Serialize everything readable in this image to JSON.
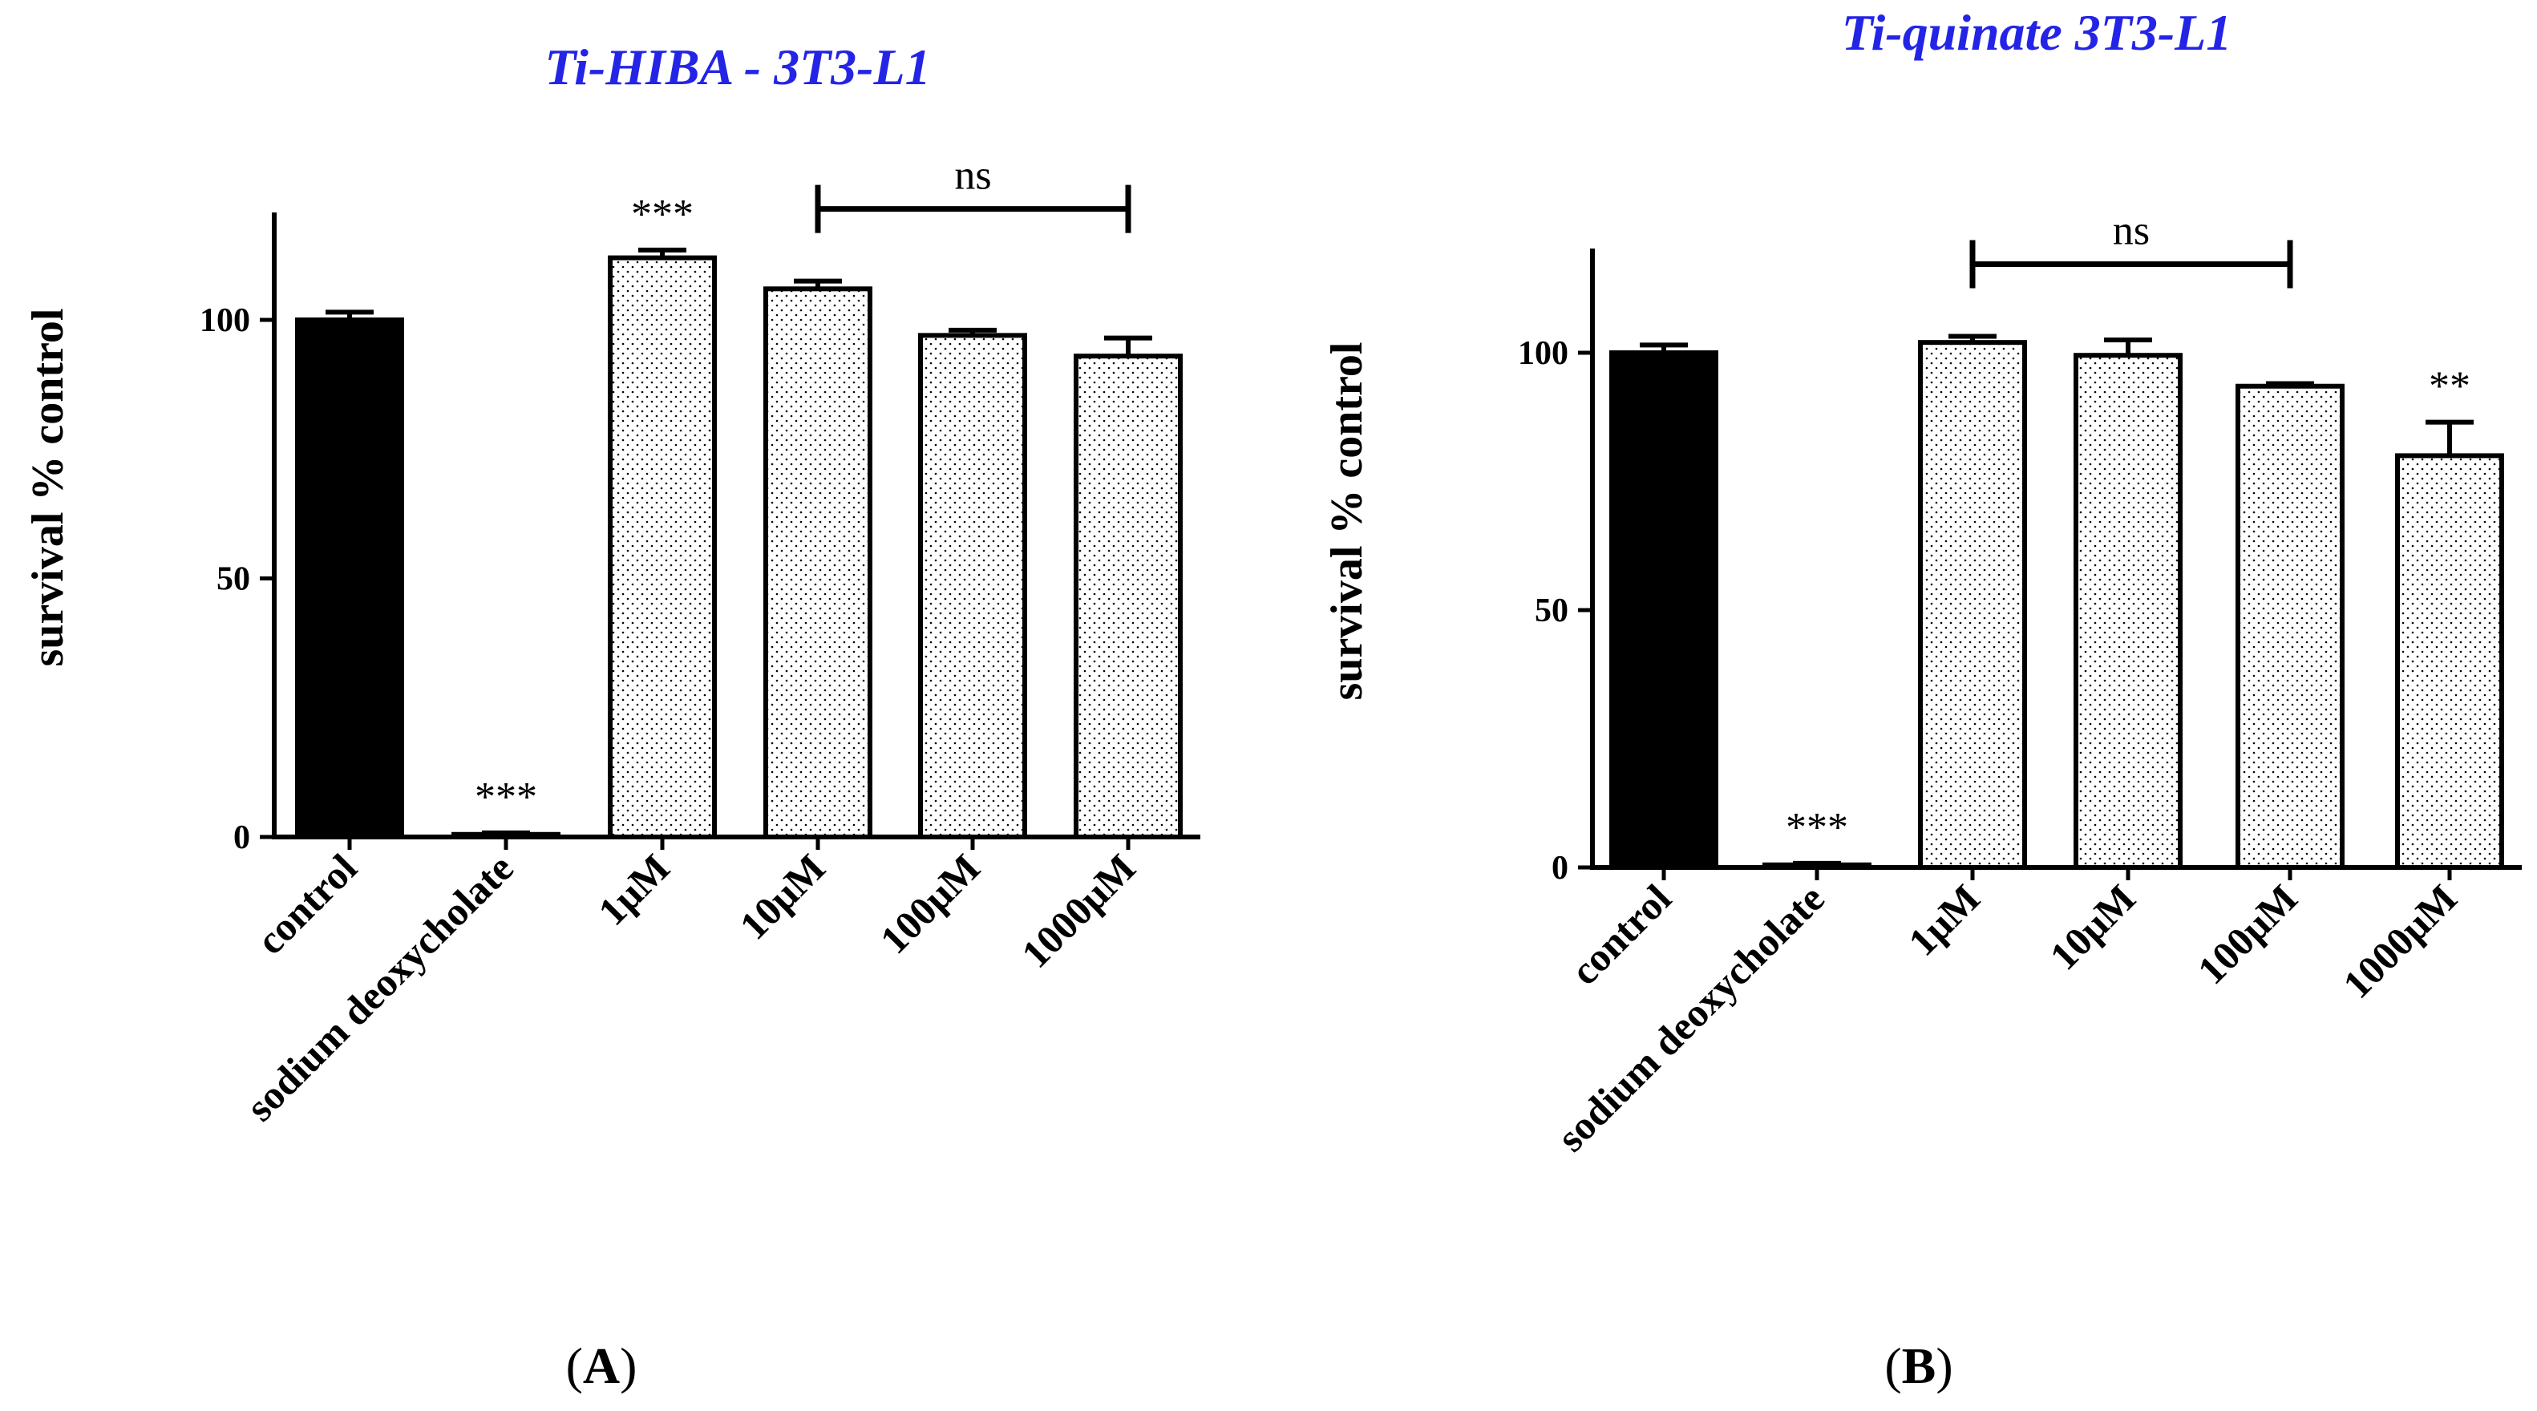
{
  "figure": {
    "panel_a_label": "(A)",
    "panel_a_letter": "A",
    "panel_b_label": "(B)",
    "panel_b_letter": "B"
  },
  "colors": {
    "title": "#2424e6",
    "control_fill": "#000000",
    "bar_stroke": "#000000",
    "dot_pattern": "#000000"
  },
  "chart_data": [
    {
      "type": "bar",
      "title": "Ti-HIBA - 3T3-L1",
      "xlabel": "",
      "ylabel": "survival % control",
      "ylim": [
        0,
        120
      ],
      "yticks": [
        "0",
        "50",
        "100"
      ],
      "categories": [
        "control",
        "sodium deoxycholate",
        "1μM",
        "10μM",
        "100μM",
        "1000μM"
      ],
      "values": [
        100,
        0.5,
        112,
        106,
        97,
        93
      ],
      "errors": [
        1.5,
        0.3,
        1.5,
        1.5,
        1,
        3.5
      ],
      "fills": [
        "solid",
        "solid",
        "dotted",
        "dotted",
        "dotted",
        "dotted"
      ],
      "significance": [
        {
          "category": "sodium deoxycholate",
          "label": "***"
        },
        {
          "category": "1μM",
          "label": "***"
        }
      ],
      "bracket": {
        "from": "10μM",
        "to": "1000μM",
        "label": "ns"
      }
    },
    {
      "type": "bar",
      "title": "Ti-quinate 3T3-L1",
      "xlabel": "",
      "ylabel": "survival % control",
      "ylim": [
        0,
        120
      ],
      "yticks": [
        "0",
        "50",
        "100"
      ],
      "categories": [
        "control",
        "sodium deoxycholate",
        "1μM",
        "10μM",
        "100μM",
        "1000μM"
      ],
      "values": [
        100,
        0.5,
        102,
        99.5,
        93.5,
        80
      ],
      "errors": [
        1.5,
        0.3,
        1.2,
        3,
        0.5,
        6.5
      ],
      "fills": [
        "solid",
        "solid",
        "dotted",
        "dotted",
        "dotted",
        "dotted"
      ],
      "significance": [
        {
          "category": "sodium deoxycholate",
          "label": "***"
        },
        {
          "category": "1000μM",
          "label": "**"
        }
      ],
      "bracket": {
        "from": "1μM",
        "to": "100μM",
        "label": "ns"
      }
    }
  ]
}
